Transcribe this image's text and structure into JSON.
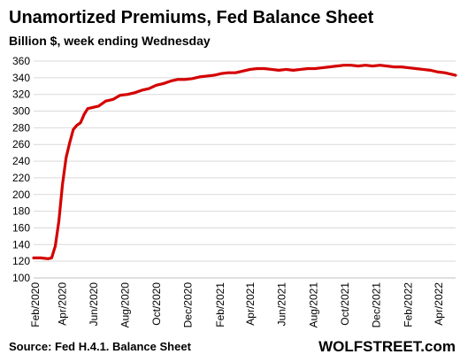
{
  "chart_data": {
    "type": "line",
    "title": "Unamortized Premiums,  Fed Balance Sheet",
    "subtitle": "Billion $, week ending Wednesday",
    "xlabel": "",
    "ylabel": "",
    "ylim": [
      100,
      360
    ],
    "yticks": [
      100,
      120,
      140,
      160,
      180,
      200,
      220,
      240,
      260,
      280,
      300,
      320,
      340,
      360
    ],
    "xlim": [
      "2020-02-05",
      "2022-05-04"
    ],
    "xtick_labels": [
      "Feb/2020",
      "Apr/2020",
      "Jun/2020",
      "Aug/2020",
      "Oct/2020",
      "Dec/2020",
      "Feb/2021",
      "Apr/2021",
      "Jun/2021",
      "Aug/2021",
      "Oct/2021",
      "Dec/2021",
      "Feb/2022",
      "Apr/2022"
    ],
    "grid": true,
    "legend": "none",
    "line_color": "#d40000",
    "source": "Source: Fed H.4.1. Balance Sheet",
    "brand": "WOLFSTREET.com",
    "series": [
      {
        "x": [
          "2020-02-05",
          "2020-02-19",
          "2020-03-04",
          "2020-03-11",
          "2020-03-18",
          "2020-03-25",
          "2020-04-01",
          "2020-04-08",
          "2020-04-15",
          "2020-04-22",
          "2020-04-29",
          "2020-05-06",
          "2020-05-13",
          "2020-05-20",
          "2020-05-27",
          "2020-06-03",
          "2020-06-10",
          "2020-06-24",
          "2020-07-08",
          "2020-07-22",
          "2020-08-05",
          "2020-08-19",
          "2020-09-02",
          "2020-09-16",
          "2020-09-30",
          "2020-10-14",
          "2020-10-28",
          "2020-11-11",
          "2020-11-25",
          "2020-12-09",
          "2020-12-23",
          "2021-01-06",
          "2021-01-20",
          "2021-02-03",
          "2021-02-17",
          "2021-03-03",
          "2021-03-17",
          "2021-03-31",
          "2021-04-14",
          "2021-04-28",
          "2021-05-12",
          "2021-05-26",
          "2021-06-09",
          "2021-06-23",
          "2021-07-07",
          "2021-07-21",
          "2021-08-04",
          "2021-08-18",
          "2021-09-01",
          "2021-09-15",
          "2021-09-29",
          "2021-10-13",
          "2021-10-27",
          "2021-11-10",
          "2021-11-24",
          "2021-12-08",
          "2021-12-22",
          "2022-01-05",
          "2022-01-19",
          "2022-02-02",
          "2022-02-16",
          "2022-03-02",
          "2022-03-16",
          "2022-03-30",
          "2022-04-13",
          "2022-04-27",
          "2022-05-04"
        ],
        "values": [
          124,
          124,
          123,
          124,
          138,
          168,
          212,
          244,
          262,
          278,
          283,
          286,
          296,
          303,
          304,
          305,
          306,
          312,
          314,
          319,
          320,
          322,
          325,
          327,
          331,
          333,
          336,
          338,
          338,
          339,
          341,
          342,
          343,
          345,
          346,
          346,
          348,
          350,
          351,
          351,
          350,
          349,
          350,
          349,
          350,
          351,
          351,
          352,
          353,
          354,
          355,
          355,
          354,
          355,
          354,
          355,
          354,
          353,
          353,
          352,
          351,
          350,
          349,
          347,
          346,
          344,
          343
        ]
      }
    ]
  }
}
